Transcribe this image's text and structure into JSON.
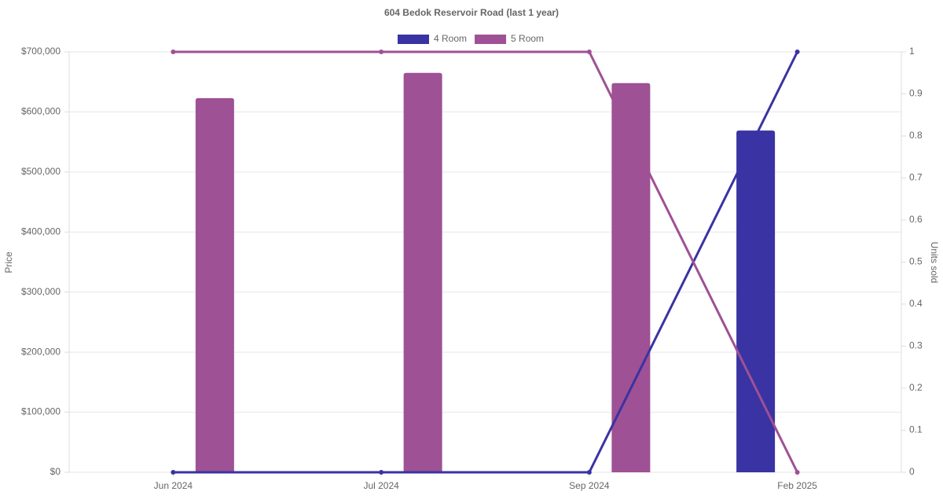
{
  "chart_data": {
    "type": "bar-line",
    "title": "604 Bedok Reservoir Road (last 1 year)",
    "categories": [
      "Jun 2024",
      "Jul 2024",
      "Sep 2024",
      "Feb 2025"
    ],
    "series": [
      {
        "name": "4 Room",
        "color": "#3a33a3",
        "values": [
          null,
          null,
          null,
          569000
        ],
        "units": [
          0,
          0,
          0,
          1
        ]
      },
      {
        "name": "5 Room",
        "color": "#9e5194",
        "values": [
          623000,
          665000,
          648000,
          null
        ],
        "units": [
          1,
          1,
          1,
          0
        ]
      }
    ],
    "y_label": "Price",
    "y2_label": "Units sold",
    "ylim": [
      0,
      700000
    ],
    "yticks": [
      {
        "value": 0,
        "label": "$0"
      },
      {
        "value": 100000,
        "label": "$100,000"
      },
      {
        "value": 200000,
        "label": "$200,000"
      },
      {
        "value": 300000,
        "label": "$300,000"
      },
      {
        "value": 400000,
        "label": "$400,000"
      },
      {
        "value": 500000,
        "label": "$500,000"
      },
      {
        "value": 600000,
        "label": "$600,000"
      },
      {
        "value": 700000,
        "label": "$700,000"
      }
    ],
    "y2lim": [
      0,
      1
    ],
    "y2ticks": [
      0,
      0.1,
      0.2,
      0.3,
      0.4,
      0.5,
      0.6,
      0.7,
      0.8,
      0.9,
      1
    ],
    "grid": true
  }
}
